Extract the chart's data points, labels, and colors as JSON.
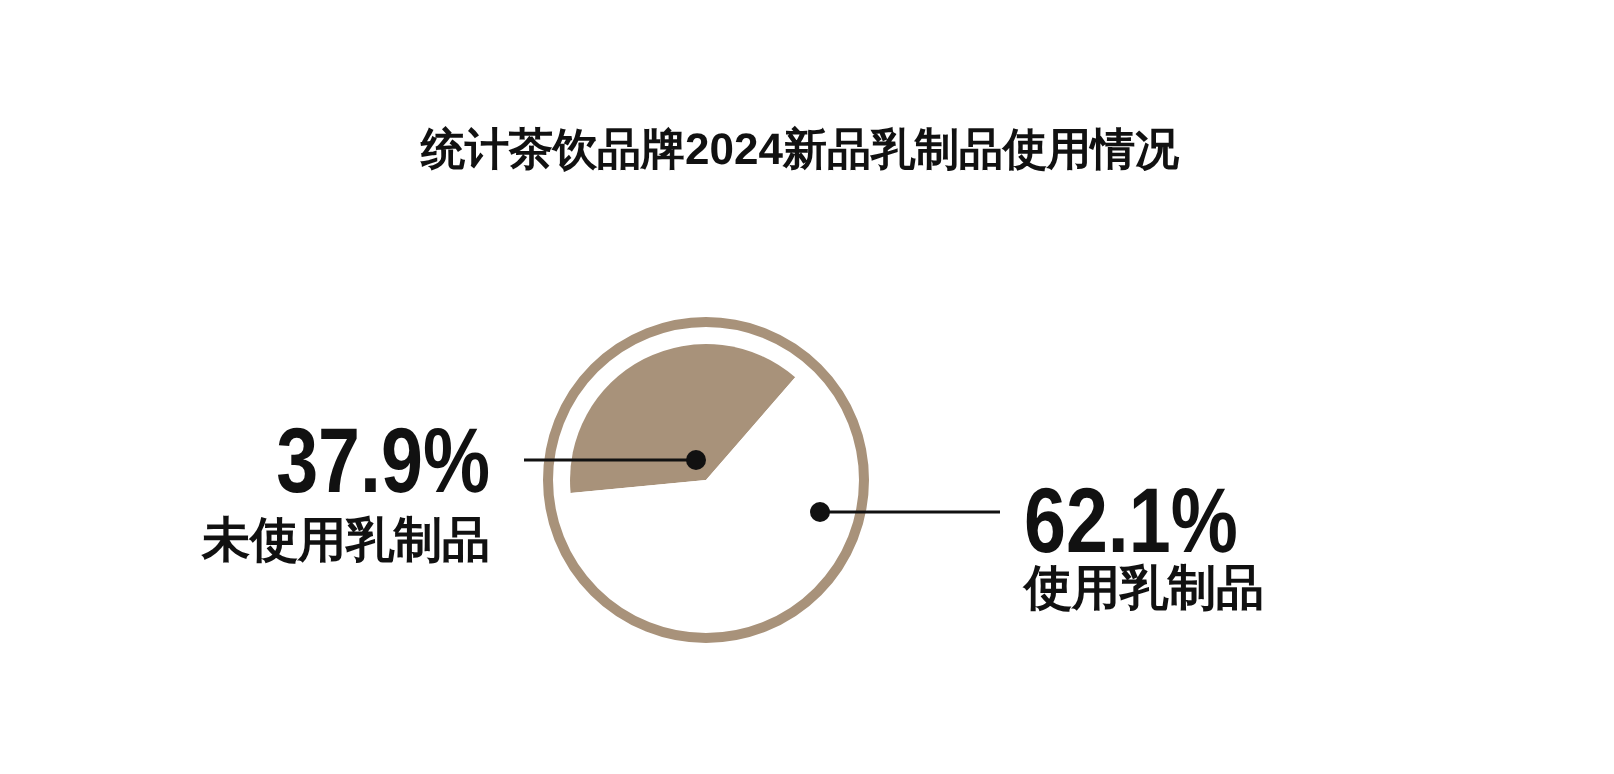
{
  "chart_data": {
    "type": "pie",
    "title": "统计茶饮品牌2024新品乳制品使用情况",
    "categories": [
      "未使用乳制品",
      "使用乳制品"
    ],
    "values": [
      37.9,
      62.1
    ],
    "colors": [
      "#a8927a",
      "#ffffff"
    ],
    "value_labels": [
      "37.9%",
      "62.1%"
    ]
  }
}
